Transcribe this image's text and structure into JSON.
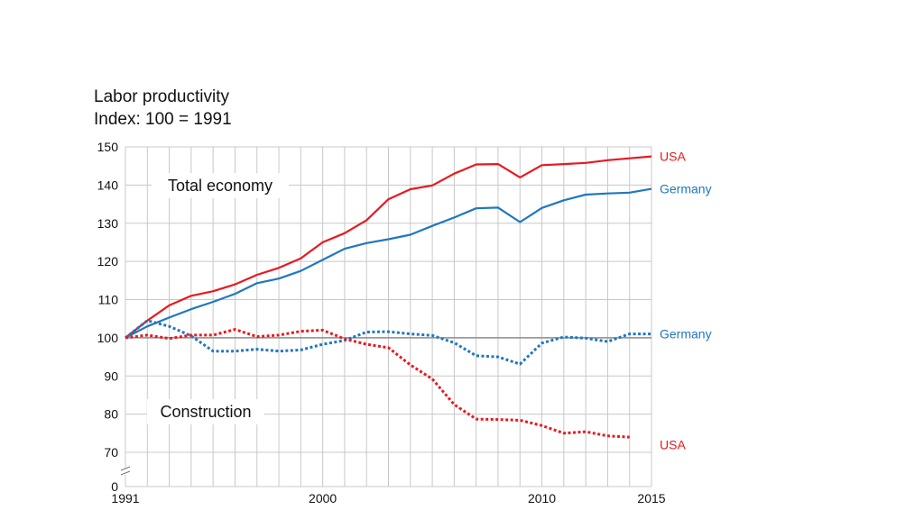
{
  "chart_data": {
    "type": "line",
    "title": "Labor productivity",
    "subtitle": "Index: 100 = 1991",
    "xlabel": "",
    "ylabel": "",
    "xlim": [
      1991,
      2015
    ],
    "ylim": [
      0,
      150
    ],
    "axis_break": "between 0 and 70",
    "y_ticks": [
      "0",
      "70",
      "80",
      "90",
      "100",
      "110",
      "120",
      "130",
      "140",
      "150"
    ],
    "x_ticks": [
      "1991",
      "2000",
      "2010",
      "2015"
    ],
    "annotations": [
      "Total economy",
      "Construction"
    ],
    "colors": {
      "USA": "#e8191f",
      "Germany": "#1f77bf"
    },
    "series": [
      {
        "name": "USA",
        "group": "Total economy",
        "style": "solid",
        "x": [
          1991,
          1992,
          1993,
          1994,
          1995,
          1996,
          1997,
          1998,
          1999,
          2000,
          2001,
          2002,
          2003,
          2004,
          2005,
          2006,
          2007,
          2008,
          2009,
          2010,
          2011,
          2012,
          2013,
          2014,
          2015
        ],
        "values": [
          100,
          104.5,
          108.5,
          111,
          112.2,
          114,
          116.5,
          118.3,
          120.8,
          125,
          127.4,
          130.8,
          136.3,
          138.9,
          139.9,
          143,
          145.4,
          145.5,
          142,
          145.2,
          145.5,
          145.8,
          146.5,
          147,
          147.5
        ]
      },
      {
        "name": "Germany",
        "group": "Total economy",
        "style": "solid",
        "x": [
          1991,
          1992,
          1993,
          1994,
          1995,
          1996,
          1997,
          1998,
          1999,
          2000,
          2001,
          2002,
          2003,
          2004,
          2005,
          2006,
          2007,
          2008,
          2009,
          2010,
          2011,
          2012,
          2013,
          2014,
          2015
        ],
        "values": [
          100,
          103,
          105.3,
          107.5,
          109.4,
          111.5,
          114.3,
          115.5,
          117.5,
          120.4,
          123.3,
          124.8,
          125.8,
          127,
          129.3,
          131.5,
          133.9,
          134.1,
          130.3,
          134,
          136,
          137.5,
          137.8,
          138,
          139
        ]
      },
      {
        "name": "Germany",
        "group": "Construction",
        "style": "dotted",
        "x": [
          1991,
          1992,
          1993,
          1994,
          1995,
          1996,
          1997,
          1998,
          1999,
          2000,
          2001,
          2002,
          2003,
          2004,
          2005,
          2006,
          2007,
          2008,
          2009,
          2010,
          2011,
          2012,
          2013,
          2014,
          2015
        ],
        "values": [
          100,
          104.5,
          103,
          100.5,
          96.5,
          96.5,
          97,
          96.5,
          96.8,
          98.3,
          99.3,
          101.5,
          101.6,
          101,
          100.6,
          98.7,
          95.3,
          95,
          93.1,
          98.6,
          100.2,
          99.9,
          99,
          101,
          101
        ]
      },
      {
        "name": "USA",
        "group": "Construction",
        "style": "dotted",
        "x": [
          1991,
          1992,
          1993,
          1994,
          1995,
          1996,
          1997,
          1998,
          1999,
          2000,
          2001,
          2002,
          2003,
          2004,
          2005,
          2006,
          2007,
          2008,
          2009,
          2010,
          2011,
          2012,
          2013,
          2014
        ],
        "values": [
          100,
          100.7,
          99.8,
          100.7,
          100.7,
          102.2,
          100.3,
          100.7,
          101.7,
          102,
          99.7,
          98.3,
          97.4,
          92.9,
          89.2,
          82.5,
          78.7,
          78.6,
          78.4,
          77,
          75,
          75.4,
          74.3,
          74
        ]
      }
    ],
    "series_labels": [
      {
        "text": "USA",
        "series_index": 0
      },
      {
        "text": "Germany",
        "series_index": 1
      },
      {
        "text": "Germany",
        "series_index": 2
      },
      {
        "text": "USA",
        "series_index": 3
      }
    ]
  }
}
